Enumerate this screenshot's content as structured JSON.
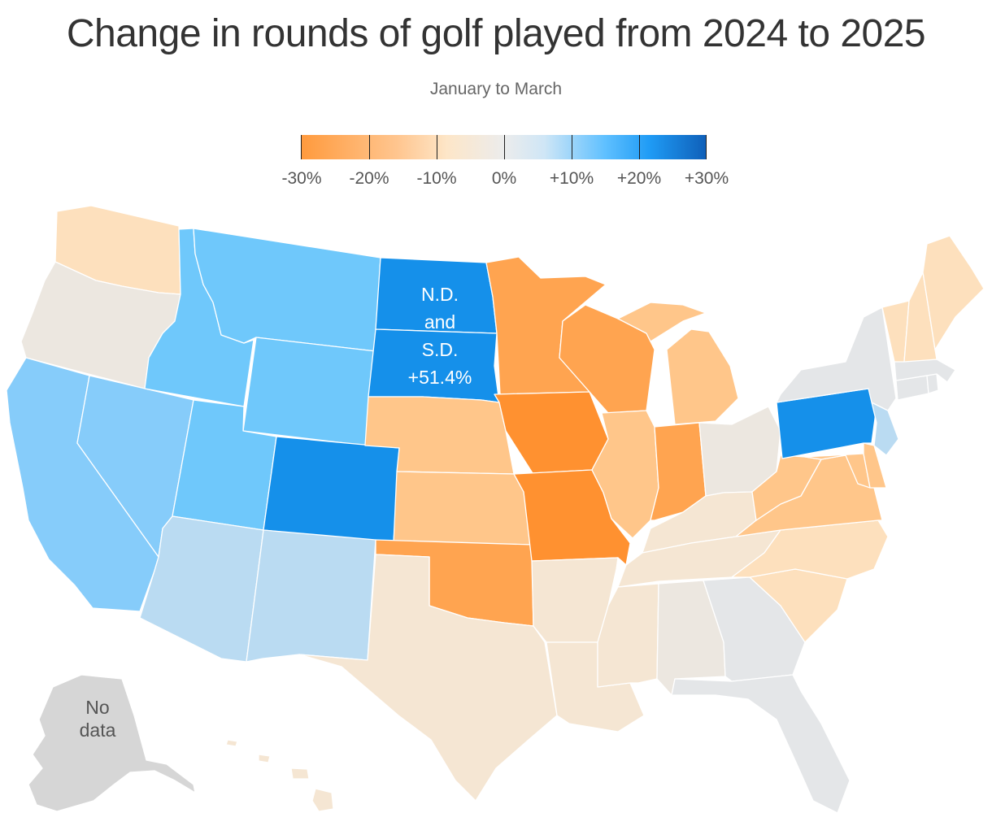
{
  "title": "Change in rounds of golf played from 2024 to 2025",
  "subtitle": "January to March",
  "legend": {
    "ticks": [
      "-30%",
      "-20%",
      "-10%",
      "0%",
      "+10%",
      "+20%",
      "+30%"
    ],
    "scale_min": -30,
    "scale_max": 30
  },
  "colors": {
    "dark_orange": "#ff9130",
    "orange": "#ffa450",
    "light_orange": "#ffc68a",
    "pale_orange": "#fde0bd",
    "tan": "#f5e6d3",
    "beige": "#ece7e0",
    "gray": "#e4e6e8",
    "no_data": "#d6d6d6",
    "pale_blue": "#badbf2",
    "light_blue": "#86ccfa",
    "sky_blue": "#6fc8fb",
    "blue": "#1590ea"
  },
  "annotations": {
    "dakotas": [
      "N.D.",
      "and",
      "S.D.",
      "+51.4%"
    ],
    "alaska": [
      "No",
      "data"
    ]
  },
  "states": [
    {
      "id": "WA",
      "color": "pale_orange"
    },
    {
      "id": "OR",
      "color": "beige"
    },
    {
      "id": "CA",
      "color": "light_blue"
    },
    {
      "id": "NV",
      "color": "light_blue"
    },
    {
      "id": "ID",
      "color": "sky_blue"
    },
    {
      "id": "MT",
      "color": "sky_blue"
    },
    {
      "id": "WY",
      "color": "sky_blue"
    },
    {
      "id": "UT",
      "color": "sky_blue"
    },
    {
      "id": "CO",
      "color": "blue"
    },
    {
      "id": "AZ",
      "color": "pale_blue"
    },
    {
      "id": "NM",
      "color": "pale_blue"
    },
    {
      "id": "ND",
      "color": "blue"
    },
    {
      "id": "SD",
      "color": "blue"
    },
    {
      "id": "NE",
      "color": "light_orange"
    },
    {
      "id": "KS",
      "color": "light_orange"
    },
    {
      "id": "OK",
      "color": "orange"
    },
    {
      "id": "TX",
      "color": "tan"
    },
    {
      "id": "MN",
      "color": "orange"
    },
    {
      "id": "IA",
      "color": "dark_orange"
    },
    {
      "id": "MO",
      "color": "dark_orange"
    },
    {
      "id": "AR",
      "color": "tan"
    },
    {
      "id": "LA",
      "color": "tan"
    },
    {
      "id": "WI",
      "color": "orange"
    },
    {
      "id": "IL",
      "color": "light_orange"
    },
    {
      "id": "MI",
      "color": "light_orange"
    },
    {
      "id": "IN",
      "color": "orange"
    },
    {
      "id": "OH",
      "color": "beige"
    },
    {
      "id": "KY",
      "color": "tan"
    },
    {
      "id": "TN",
      "color": "tan"
    },
    {
      "id": "MS",
      "color": "tan"
    },
    {
      "id": "AL",
      "color": "beige"
    },
    {
      "id": "GA",
      "color": "gray"
    },
    {
      "id": "FL",
      "color": "gray"
    },
    {
      "id": "SC",
      "color": "pale_orange"
    },
    {
      "id": "NC",
      "color": "pale_orange"
    },
    {
      "id": "VA",
      "color": "light_orange"
    },
    {
      "id": "WV",
      "color": "light_orange"
    },
    {
      "id": "MD",
      "color": "light_orange"
    },
    {
      "id": "DE",
      "color": "light_orange"
    },
    {
      "id": "PA",
      "color": "blue"
    },
    {
      "id": "NJ",
      "color": "pale_blue"
    },
    {
      "id": "NY",
      "color": "gray"
    },
    {
      "id": "CT",
      "color": "gray"
    },
    {
      "id": "RI",
      "color": "gray"
    },
    {
      "id": "MA",
      "color": "gray"
    },
    {
      "id": "VT",
      "color": "pale_orange"
    },
    {
      "id": "NH",
      "color": "pale_orange"
    },
    {
      "id": "ME",
      "color": "pale_orange"
    },
    {
      "id": "HI",
      "color": "tan"
    },
    {
      "id": "AK",
      "color": "no_data"
    }
  ]
}
